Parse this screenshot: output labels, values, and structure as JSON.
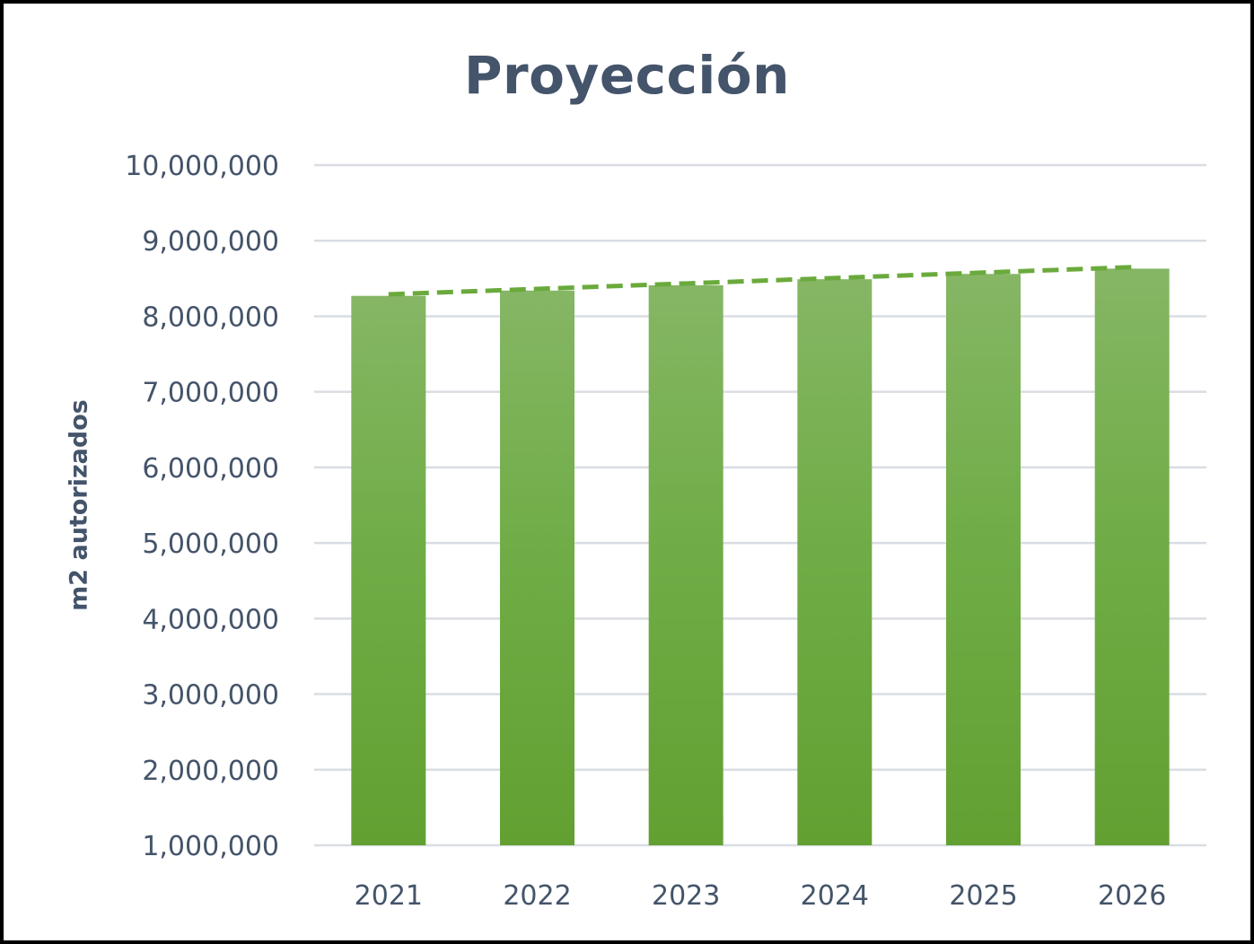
{
  "chart_data": {
    "type": "bar",
    "title": "Proyección",
    "xlabel": "",
    "ylabel": "m2 autorizados",
    "categories": [
      "2021",
      "2022",
      "2023",
      "2024",
      "2025",
      "2026"
    ],
    "values": [
      8270000,
      8340000,
      8410000,
      8490000,
      8560000,
      8630000
    ],
    "trendline": {
      "style": "dashed",
      "from": 8290000,
      "to": 8650000
    },
    "ylim": [
      1000000,
      10000000
    ],
    "yticks": [
      1000000,
      2000000,
      3000000,
      4000000,
      5000000,
      6000000,
      7000000,
      8000000,
      9000000,
      10000000
    ],
    "ytick_labels": [
      "1,000,000",
      "2,000,000",
      "3,000,000",
      "4,000,000",
      "5,000,000",
      "6,000,000",
      "7,000,000",
      "8,000,000",
      "9,000,000",
      "10,000,000"
    ],
    "grid": true,
    "legend": "none",
    "colors": {
      "bar_top": "#86b665",
      "bar_mid": "#70ad47",
      "bar_bottom": "#62a032",
      "trendline": "#6aaa3c",
      "grid": "#d9dde3",
      "text": "#44546a"
    }
  }
}
